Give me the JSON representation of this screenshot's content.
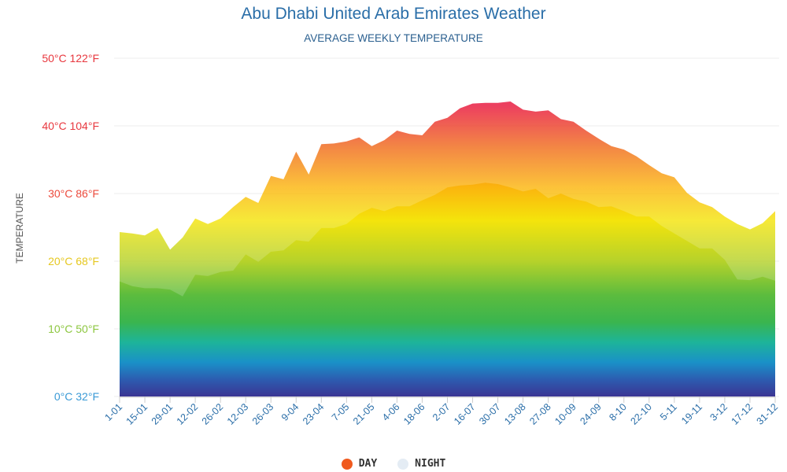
{
  "chart_data": {
    "type": "area",
    "title": "Abu Dhabi United Arab Emirates Weather",
    "subtitle": "AVERAGE WEEKLY TEMPERATURE",
    "ylabel": "TEMPERATURE",
    "xlabel": "",
    "ylim": [
      0,
      50
    ],
    "grid": true,
    "legend_position": "bottom-center",
    "y_ticks": [
      {
        "value": 0,
        "label": "0°C 32°F",
        "color": "#3a9ad6"
      },
      {
        "value": 10,
        "label": "10°C 50°F",
        "color": "#8cc63f"
      },
      {
        "value": 20,
        "label": "20°C 68°F",
        "color": "#e6c821"
      },
      {
        "value": 30,
        "label": "30°C 86°F",
        "color": "#ec4a3c"
      },
      {
        "value": 40,
        "label": "40°C 104°F",
        "color": "#e8383f"
      },
      {
        "value": 50,
        "label": "50°C 122°F",
        "color": "#e8383f"
      }
    ],
    "x_tick_labels": [
      "1-01",
      "15-01",
      "29-01",
      "12-02",
      "26-02",
      "12-03",
      "26-03",
      "9-04",
      "23-04",
      "7-05",
      "21-05",
      "4-06",
      "18-06",
      "2-07",
      "16-07",
      "30-07",
      "13-08",
      "27-08",
      "10-09",
      "24-09",
      "8-10",
      "22-10",
      "5-11",
      "19-11",
      "3-12",
      "17-12",
      "31-12"
    ],
    "series": [
      {
        "name": "DAY",
        "color": "#f05a1e",
        "values": [
          24.3,
          24.1,
          23.8,
          24.9,
          21.7,
          23.5,
          26.3,
          25.5,
          26.3,
          28.0,
          29.5,
          28.6,
          32.6,
          32.1,
          36.2,
          32.8,
          37.3,
          37.4,
          37.7,
          38.3,
          37.0,
          37.9,
          39.3,
          38.8,
          38.6,
          40.6,
          41.2,
          42.6,
          43.3,
          43.4,
          43.4,
          43.6,
          42.4,
          42.1,
          42.3,
          41.0,
          40.6,
          39.3,
          38.1,
          37.0,
          36.5,
          35.5,
          34.2,
          33.0,
          32.4,
          30.1,
          28.7,
          28.0,
          26.6,
          25.5,
          24.7,
          25.6,
          27.4
        ]
      },
      {
        "name": "NIGHT",
        "color": "#e4ecf4",
        "values": [
          17.0,
          16.3,
          16.0,
          16.0,
          15.8,
          14.8,
          18.0,
          17.8,
          18.4,
          18.6,
          21.0,
          19.9,
          21.4,
          21.6,
          23.1,
          22.9,
          24.9,
          24.9,
          25.5,
          27.0,
          27.9,
          27.4,
          28.1,
          28.1,
          29.0,
          29.8,
          30.9,
          31.2,
          31.3,
          31.6,
          31.4,
          30.9,
          30.3,
          30.7,
          29.3,
          30.0,
          29.2,
          28.8,
          28.0,
          28.1,
          27.4,
          26.6,
          26.6,
          25.2,
          24.1,
          23.0,
          21.9,
          21.9,
          20.2,
          17.3,
          17.2,
          17.7,
          17.1
        ]
      }
    ]
  }
}
